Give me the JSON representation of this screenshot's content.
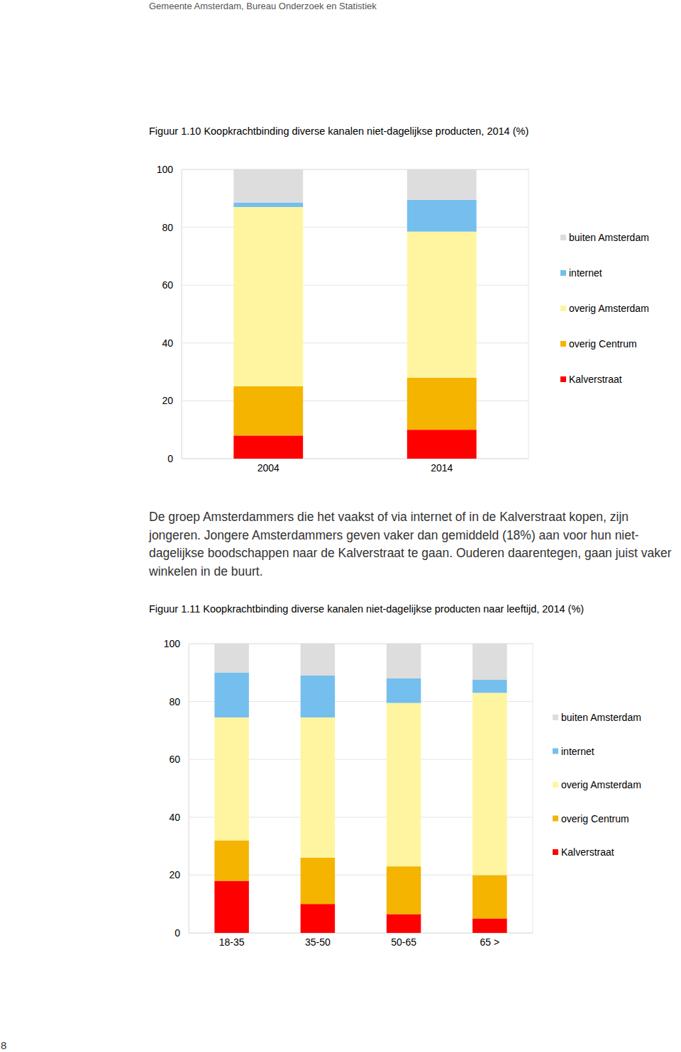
{
  "header": "Gemeente Amsterdam, Bureau Onderzoek en Statistiek",
  "paragraph": "De groep Amsterdammers die het vaakst of via internet of in de Kalverstraat kopen, zijn jongeren. Jongere Amsterdammers geven vaker dan gemiddeld (18%) aan voor hun niet-dagelijkse boodschappen naar de Kalverstraat te gaan. Ouderen daarentegen, gaan juist vaker winkelen in de buurt.",
  "page_number": "8",
  "chart_data": [
    {
      "type": "bar",
      "stacked": true,
      "grid": true,
      "legend": "right",
      "title": "Figuur 1.10  Koopkrachtbinding diverse kanalen niet-dagelijkse producten, 2014 (%)",
      "categories": [
        "2004",
        "2014"
      ],
      "ylim": [
        0,
        100
      ],
      "yticks": [
        0,
        20,
        40,
        60,
        80,
        100
      ],
      "series": [
        {
          "name": "Kalverstraat",
          "color": "#ff0000",
          "values": [
            8,
            10
          ]
        },
        {
          "name": "overig Centrum",
          "color": "#f4b400",
          "values": [
            17,
            18
          ]
        },
        {
          "name": "overig Amsterdam",
          "color": "#fff5a0",
          "values": [
            62,
            50.5
          ]
        },
        {
          "name": "internet",
          "color": "#74bfee",
          "values": [
            1.5,
            11
          ]
        },
        {
          "name": "buiten Amsterdam",
          "color": "#dddddd",
          "values": [
            11.5,
            10.5
          ]
        }
      ]
    },
    {
      "type": "bar",
      "stacked": true,
      "grid": true,
      "legend": "right",
      "title": "Figuur 1.11  Koopkrachtbinding diverse kanalen niet-dagelijkse producten naar leeftijd, 2014 (%)",
      "categories": [
        "18-35",
        "35-50",
        "50-65",
        "65 >"
      ],
      "ylim": [
        0,
        100
      ],
      "yticks": [
        0,
        20,
        40,
        60,
        80,
        100
      ],
      "series": [
        {
          "name": "Kalverstraat",
          "color": "#ff0000",
          "values": [
            18,
            10,
            6.5,
            5
          ]
        },
        {
          "name": "overig Centrum",
          "color": "#f4b400",
          "values": [
            14,
            16,
            16.5,
            15
          ]
        },
        {
          "name": "overig Amsterdam",
          "color": "#fff5a0",
          "values": [
            42.5,
            48.5,
            56.5,
            63
          ]
        },
        {
          "name": "internet",
          "color": "#74bfee",
          "values": [
            15.5,
            14.5,
            8.5,
            4.5
          ]
        },
        {
          "name": "buiten Amsterdam",
          "color": "#dddddd",
          "values": [
            10,
            11,
            12,
            12.5
          ]
        }
      ]
    }
  ]
}
